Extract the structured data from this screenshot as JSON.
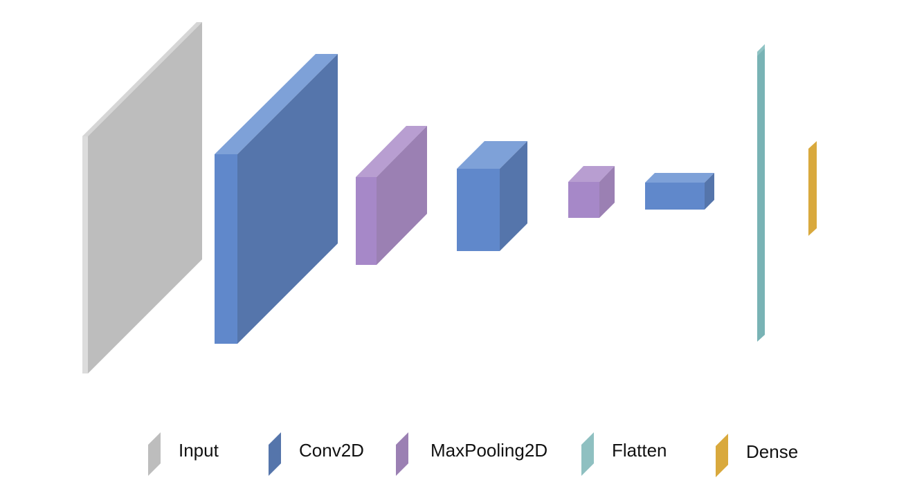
{
  "diagram": {
    "type": "layered-network-3d",
    "layers": [
      {
        "kind": "input",
        "color": "#bdbdbd"
      },
      {
        "kind": "conv2d",
        "color": "#5b84c8"
      },
      {
        "kind": "maxpooling2d",
        "color": "#9e82b8"
      },
      {
        "kind": "conv2d",
        "color": "#5b84c8"
      },
      {
        "kind": "maxpooling2d",
        "color": "#9e82b8"
      },
      {
        "kind": "conv2d",
        "color": "#5b84c8"
      },
      {
        "kind": "flatten",
        "color": "#79b3b5"
      },
      {
        "kind": "dense",
        "color": "#d9a93d"
      }
    ]
  },
  "legend": {
    "items": [
      {
        "label": "Input",
        "color": "#bdbdbd"
      },
      {
        "label": "Conv2D",
        "color": "#5b84c8"
      },
      {
        "label": "MaxPooling2D",
        "color": "#9e82b8"
      },
      {
        "label": "Flatten",
        "color": "#79b3b5"
      },
      {
        "label": "Dense",
        "color": "#d9a93d"
      }
    ]
  }
}
